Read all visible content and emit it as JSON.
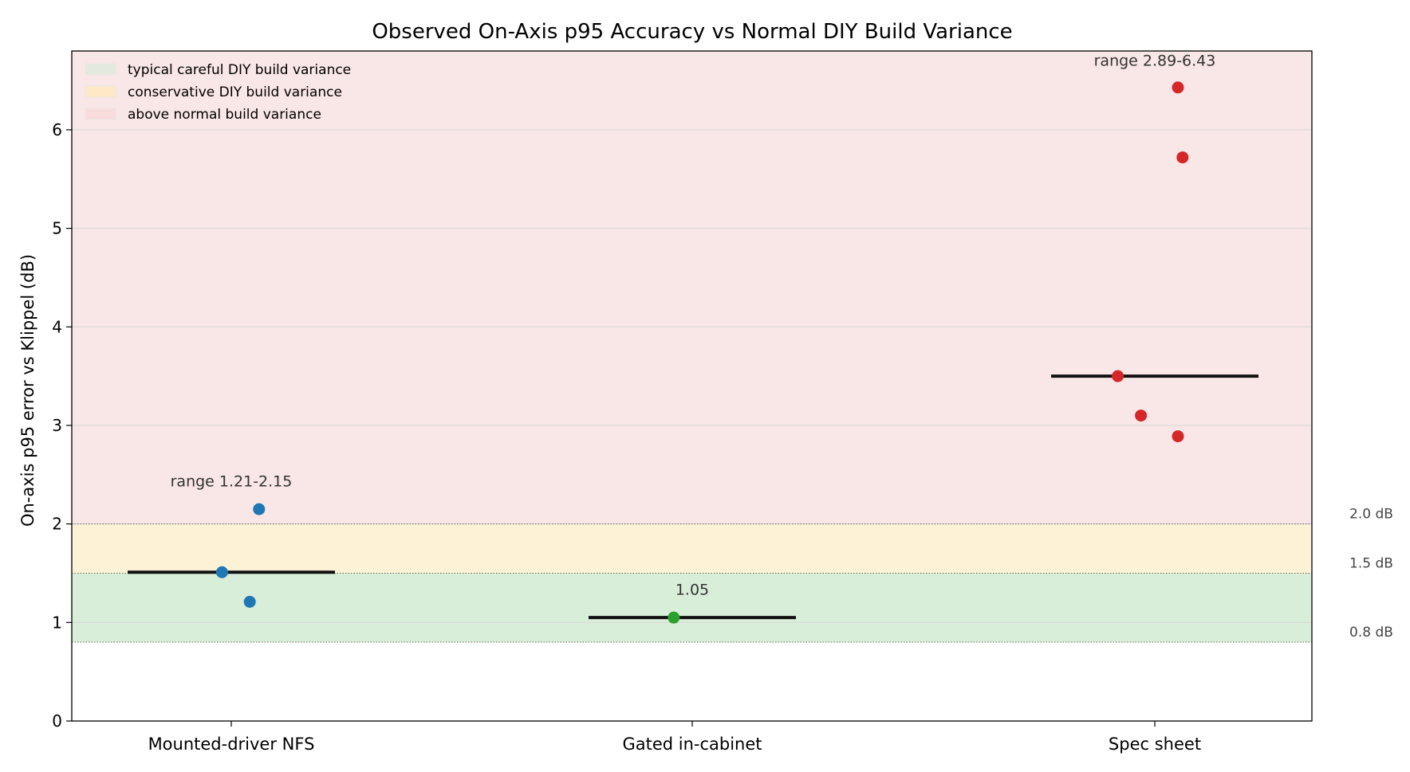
{
  "chart_data": {
    "type": "scatter",
    "title": "Observed On-Axis p95 Accuracy vs Normal DIY Build Variance",
    "xlabel": "",
    "ylabel": "On-axis p95 error vs Klippel (dB)",
    "ylim": [
      0,
      6.8
    ],
    "yticks": [
      0,
      1,
      2,
      3,
      4,
      5,
      6
    ],
    "grid": "horizontal",
    "legend_position": "top-left",
    "categories": [
      "Mounted-driver NFS",
      "Gated in-cabinet",
      "Spec sheet"
    ],
    "bands": [
      {
        "label": "typical careful DIY build variance",
        "from": 0.8,
        "to": 1.5,
        "color": "#d9eed9"
      },
      {
        "label": "conservative DIY build variance",
        "from": 1.5,
        "to": 2.0,
        "color": "#fdf2d6"
      },
      {
        "label": "above normal build variance",
        "from": 2.0,
        "to": 6.8,
        "color": "#f9e6e6"
      }
    ],
    "threshold_lines": [
      {
        "value": 0.8,
        "label": "0.8 dB"
      },
      {
        "value": 1.5,
        "label": "1.5 dB"
      },
      {
        "value": 2.0,
        "label": "2.0 dB"
      }
    ],
    "series": [
      {
        "category": "Mounted-driver NFS",
        "color": "#1f77b4",
        "points": [
          2.15,
          1.51,
          1.21
        ],
        "jitter": [
          0.06,
          -0.02,
          0.04
        ],
        "median": 1.51,
        "annotation": "range 1.21-2.15",
        "annotation_y": 2.38
      },
      {
        "category": "Gated in-cabinet",
        "color": "#2ca02c",
        "points": [
          1.05
        ],
        "jitter": [
          -0.04
        ],
        "median": 1.05,
        "annotation": "1.05",
        "annotation_y": 1.28
      },
      {
        "category": "Spec sheet",
        "color": "#d62728",
        "points": [
          6.43,
          5.72,
          3.5,
          3.1,
          2.89
        ],
        "jitter": [
          0.05,
          0.06,
          -0.08,
          -0.03,
          0.05
        ],
        "median": 3.5,
        "annotation": "range 2.89-6.43",
        "annotation_y": 6.65
      }
    ]
  }
}
